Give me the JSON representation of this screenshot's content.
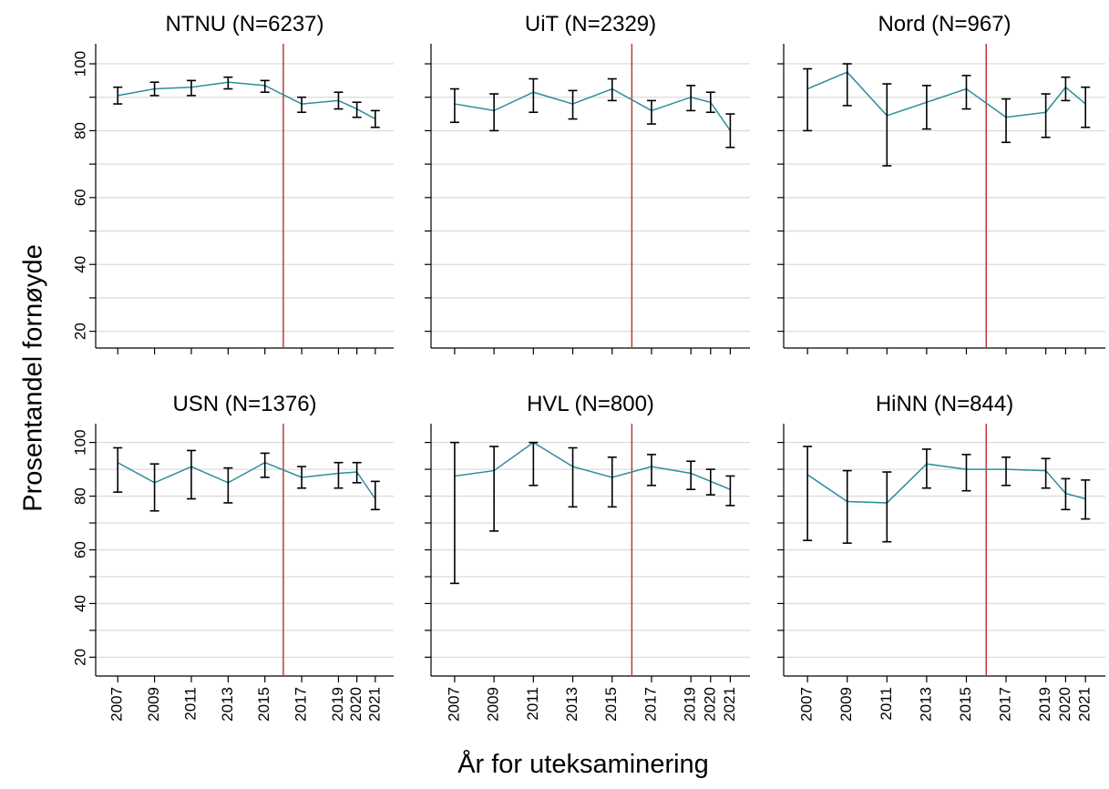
{
  "axis_titles": {
    "y": "Prosentandel fornøyde",
    "x": "År for uteksaminering"
  },
  "chart_data": [
    {
      "type": "line",
      "title": "NTNU (N=6237)",
      "x": [
        2007,
        2009,
        2011,
        2013,
        2015,
        2017,
        2019,
        2020,
        2021
      ],
      "values": [
        90.5,
        92.5,
        93,
        94.5,
        93.5,
        88,
        89,
        86.5,
        83.5
      ],
      "lower": [
        88,
        90.5,
        90.5,
        92.5,
        91.5,
        85.5,
        86.5,
        84,
        81
      ],
      "upper": [
        93,
        94.5,
        95,
        96,
        95,
        90,
        91.5,
        88.5,
        86
      ],
      "color": "#2b8e9c",
      "errorbar_color": "#000000",
      "xlim": [
        2005.8,
        2022
      ],
      "ylim": [
        15,
        106
      ],
      "xticks": [
        2007,
        2009,
        2011,
        2013,
        2015,
        2017,
        2019,
        2020,
        2021
      ],
      "yticks": [
        20,
        40,
        60,
        80,
        100
      ],
      "yminorticks": [
        30,
        50,
        70,
        90
      ],
      "grid": true,
      "vline": 2016,
      "vline_color": "#c0393b"
    },
    {
      "type": "line",
      "title": "UiT (N=2329)",
      "x": [
        2007,
        2009,
        2011,
        2013,
        2015,
        2017,
        2019,
        2020,
        2021
      ],
      "values": [
        88,
        86,
        91.5,
        88,
        92.5,
        86,
        90,
        88.5,
        80
      ],
      "lower": [
        82.5,
        80,
        85.5,
        83.5,
        89,
        82,
        86,
        85.5,
        75
      ],
      "upper": [
        92.5,
        91,
        95.5,
        92,
        95.5,
        89,
        93.5,
        91.5,
        85
      ],
      "color": "#2b8e9c",
      "errorbar_color": "#000000",
      "xlim": [
        2005.8,
        2022
      ],
      "ylim": [
        15,
        106
      ],
      "xticks": [
        2007,
        2009,
        2011,
        2013,
        2015,
        2017,
        2019,
        2020,
        2021
      ],
      "yticks": [
        20,
        40,
        60,
        80,
        100
      ],
      "yminorticks": [
        30,
        50,
        70,
        90
      ],
      "grid": true,
      "vline": 2016,
      "vline_color": "#c0393b"
    },
    {
      "type": "line",
      "title": "Nord (N=967)",
      "x": [
        2007,
        2009,
        2011,
        2013,
        2015,
        2017,
        2019,
        2020,
        2021
      ],
      "values": [
        92.5,
        97.5,
        84.5,
        88.5,
        92.5,
        84,
        85.5,
        93,
        88
      ],
      "lower": [
        80,
        87.5,
        69.5,
        80.5,
        86.5,
        76.5,
        78,
        89,
        81
      ],
      "upper": [
        98.5,
        100,
        94,
        93.5,
        96.5,
        89.5,
        91,
        96,
        93
      ],
      "color": "#2b8e9c",
      "errorbar_color": "#000000",
      "xlim": [
        2005.8,
        2022
      ],
      "ylim": [
        15,
        106
      ],
      "xticks": [
        2007,
        2009,
        2011,
        2013,
        2015,
        2017,
        2019,
        2020,
        2021
      ],
      "yticks": [
        20,
        40,
        60,
        80,
        100
      ],
      "yminorticks": [
        30,
        50,
        70,
        90
      ],
      "grid": true,
      "vline": 2016,
      "vline_color": "#c0393b"
    },
    {
      "type": "line",
      "title": "USN (N=1376)",
      "x": [
        2007,
        2009,
        2011,
        2013,
        2015,
        2017,
        2019,
        2020,
        2021
      ],
      "values": [
        92.5,
        85,
        91,
        85,
        92.5,
        87,
        88.5,
        89,
        79
      ],
      "lower": [
        81.5,
        74.5,
        79,
        77.5,
        87,
        83,
        83,
        85,
        75
      ],
      "upper": [
        98,
        92,
        97,
        90.5,
        96,
        91,
        92.5,
        92.5,
        85.5
      ],
      "color": "#2b8e9c",
      "errorbar_color": "#000000",
      "xlim": [
        2005.8,
        2022
      ],
      "ylim": [
        13,
        107
      ],
      "xticks": [
        2007,
        2009,
        2011,
        2013,
        2015,
        2017,
        2019,
        2020,
        2021
      ],
      "yticks": [
        20,
        40,
        60,
        80,
        100
      ],
      "yminorticks": [
        30,
        50,
        70,
        90
      ],
      "grid": true,
      "vline": 2016,
      "vline_color": "#c0393b"
    },
    {
      "type": "line",
      "title": "HVL (N=800)",
      "x": [
        2007,
        2009,
        2011,
        2013,
        2015,
        2017,
        2019,
        2020,
        2021
      ],
      "values": [
        87.5,
        89.5,
        100,
        91,
        87,
        91,
        88.5,
        85.5,
        82.5
      ],
      "lower": [
        47.5,
        67,
        84,
        76,
        76,
        84,
        82.5,
        80.5,
        76.5
      ],
      "upper": [
        100,
        98.5,
        100,
        98,
        94.5,
        95.5,
        93,
        90,
        87.5
      ],
      "color": "#2b8e9c",
      "errorbar_color": "#000000",
      "xlim": [
        2005.8,
        2022
      ],
      "ylim": [
        13,
        107
      ],
      "xticks": [
        2007,
        2009,
        2011,
        2013,
        2015,
        2017,
        2019,
        2020,
        2021
      ],
      "yticks": [
        20,
        40,
        60,
        80,
        100
      ],
      "yminorticks": [
        30,
        50,
        70,
        90
      ],
      "grid": true,
      "vline": 2016,
      "vline_color": "#c0393b"
    },
    {
      "type": "line",
      "title": "HiNN (N=844)",
      "x": [
        2007,
        2009,
        2011,
        2013,
        2015,
        2017,
        2019,
        2020,
        2021
      ],
      "values": [
        88,
        78,
        77.5,
        92,
        90,
        90,
        89.5,
        81,
        79
      ],
      "lower": [
        63.5,
        62.5,
        63,
        83,
        82,
        84,
        83,
        75,
        71.5
      ],
      "upper": [
        98.5,
        89.5,
        89,
        97.5,
        95.5,
        94.5,
        94,
        86.5,
        86
      ],
      "color": "#2b8e9c",
      "errorbar_color": "#000000",
      "xlim": [
        2005.8,
        2022
      ],
      "ylim": [
        13,
        107
      ],
      "xticks": [
        2007,
        2009,
        2011,
        2013,
        2015,
        2017,
        2019,
        2020,
        2021
      ],
      "yticks": [
        20,
        40,
        60,
        80,
        100
      ],
      "yminorticks": [
        30,
        50,
        70,
        90
      ],
      "grid": true,
      "vline": 2016,
      "vline_color": "#c0393b"
    }
  ]
}
